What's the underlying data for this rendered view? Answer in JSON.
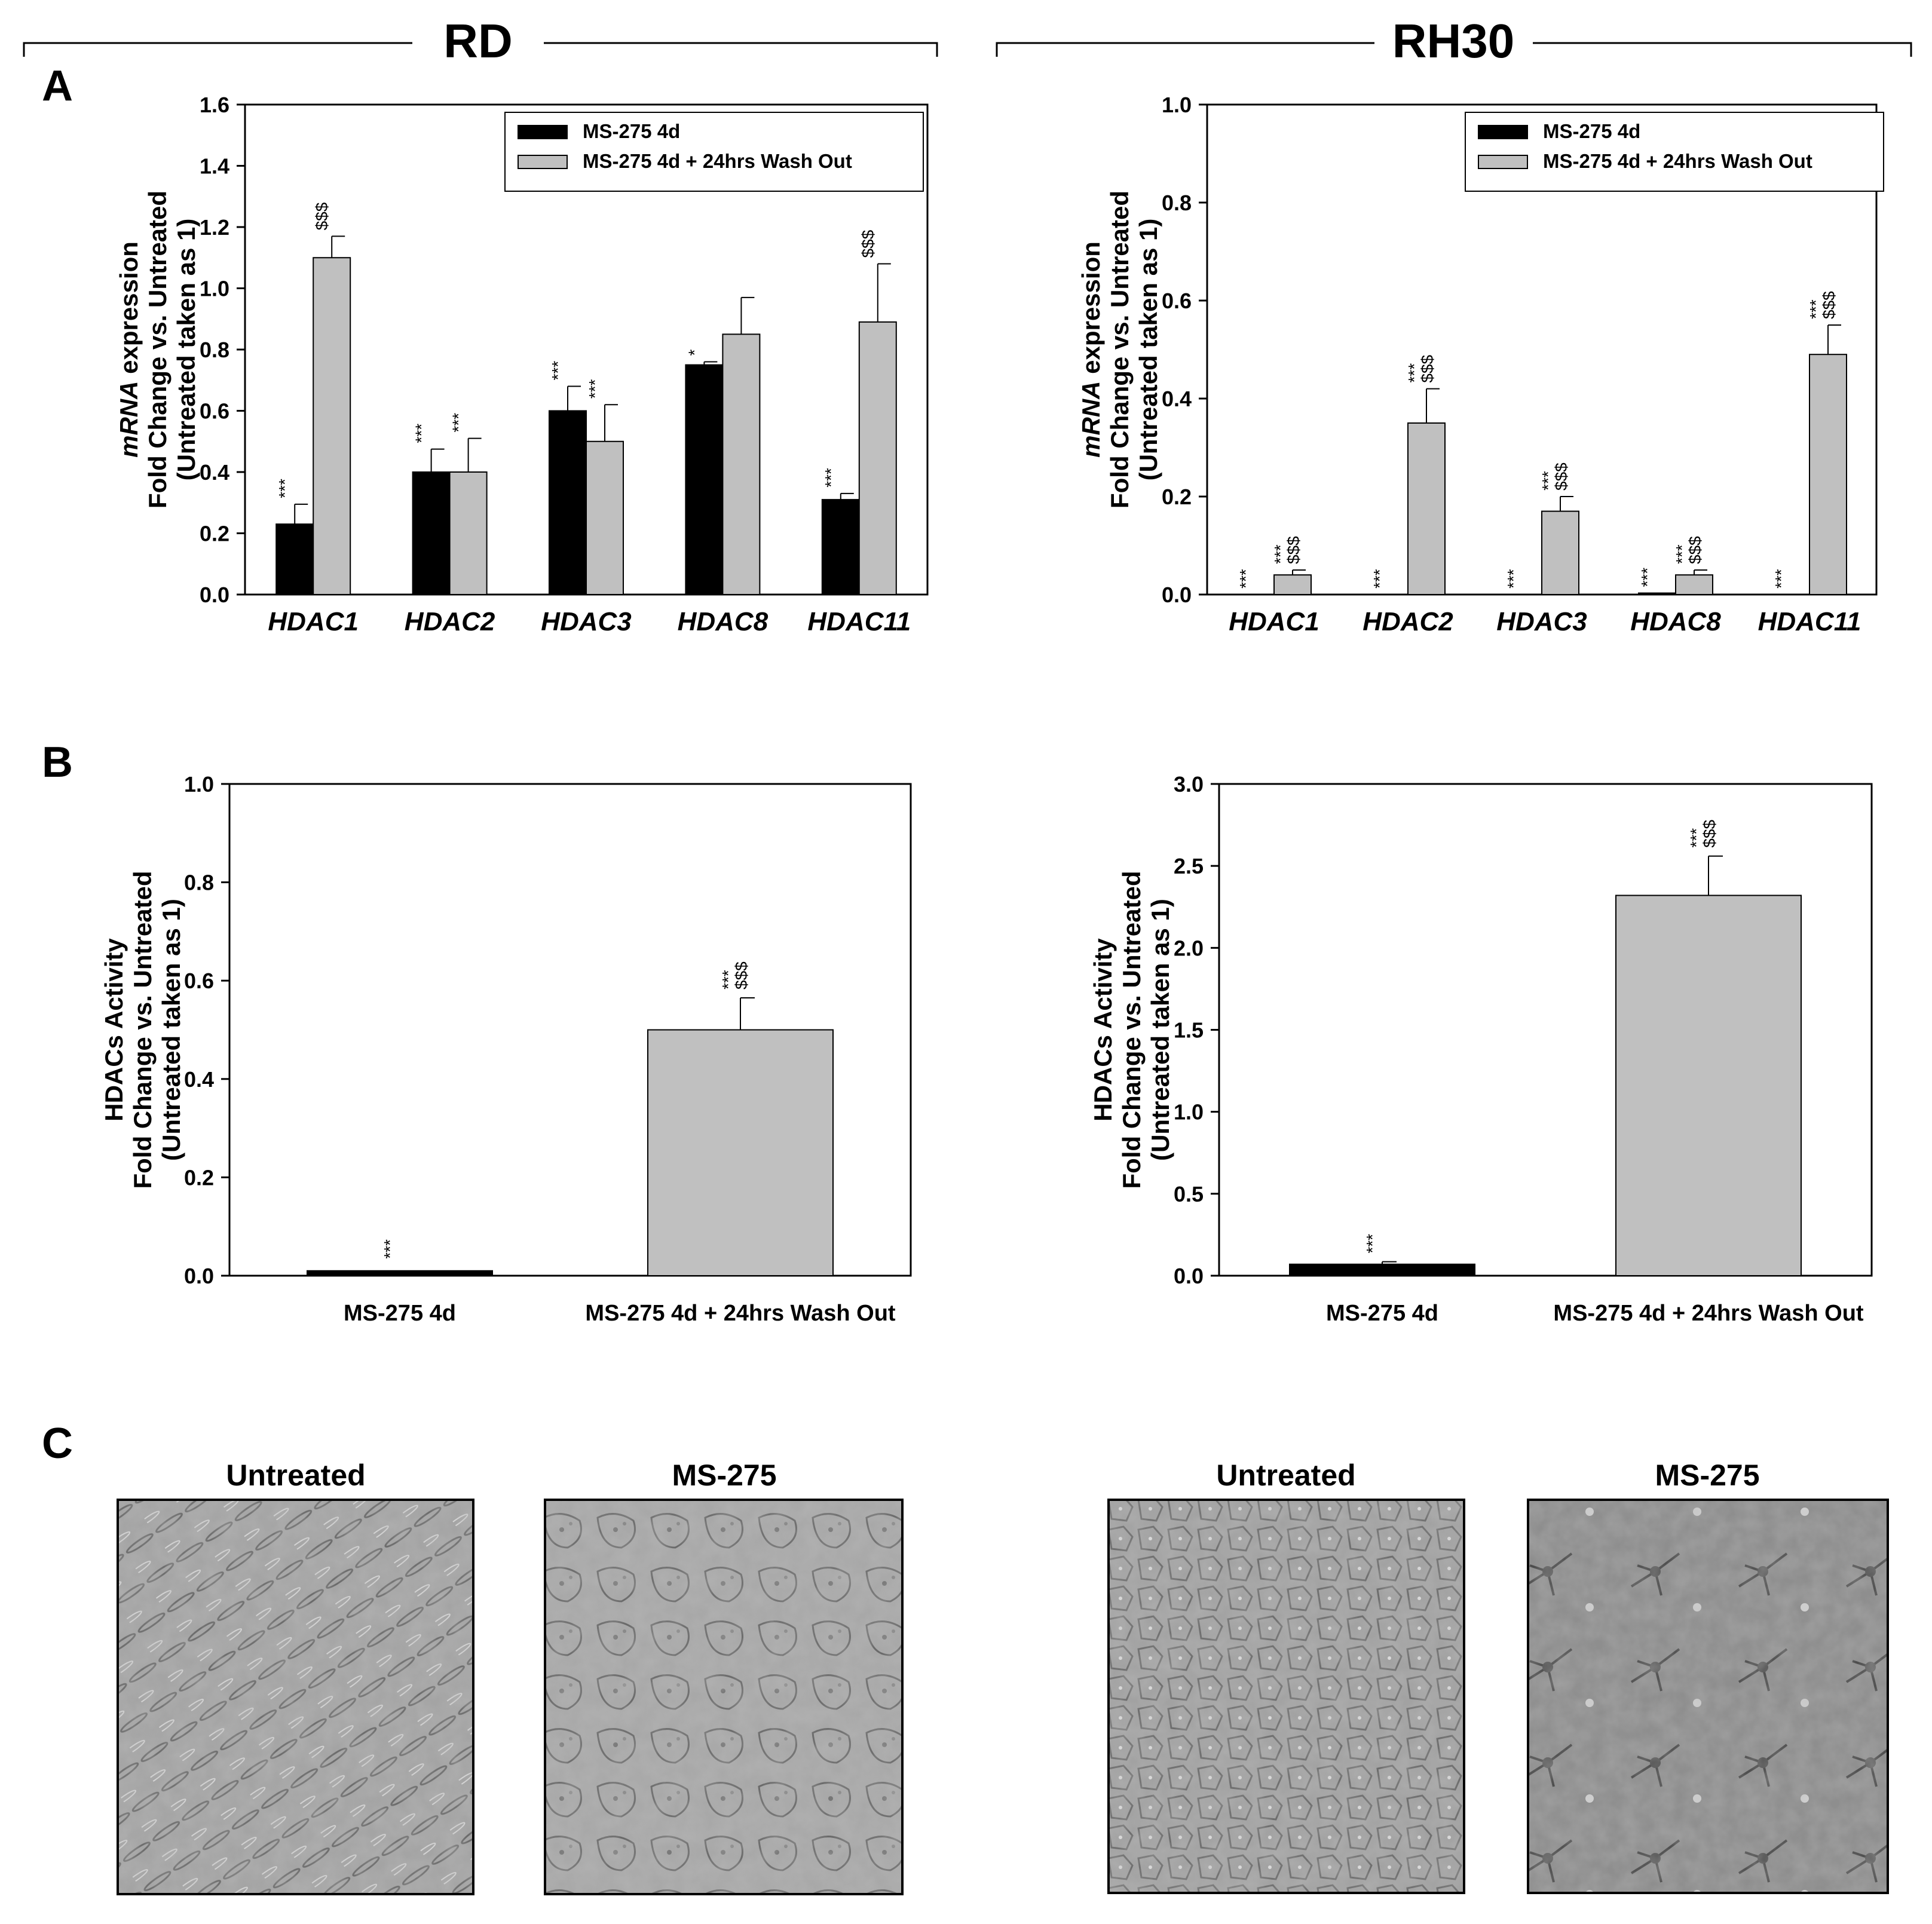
{
  "figure": {
    "headers": {
      "rd": "RD",
      "rh30": "RH30"
    },
    "panel_letters": {
      "a": "A",
      "b": "B",
      "c": "C"
    },
    "images": [
      {
        "label": "Untreated",
        "cell_line": "RD",
        "appearance": "dense elongated spindle-shaped cells"
      },
      {
        "label": "MS-275",
        "cell_line": "RD",
        "appearance": "flattened cells with granular cytoplasm"
      },
      {
        "label": "Untreated",
        "cell_line": "RH30",
        "appearance": "dense cobblestone-like cell monolayer"
      },
      {
        "label": "MS-275",
        "cell_line": "RH30",
        "appearance": "sparse scattered cells with long extensions"
      }
    ],
    "colors": {
      "bar_black": "#000000",
      "bar_grey": "#c0c0c0",
      "axis": "#000000",
      "background": "#ffffff",
      "micro_bg": "#9a9a9a"
    }
  },
  "chart_data": [
    {
      "id": "A-RD",
      "type": "bar",
      "panel": "A",
      "cell_line": "RD",
      "categories": [
        "HDAC1",
        "HDAC2",
        "HDAC3",
        "HDAC8",
        "HDAC11"
      ],
      "categories_italic": true,
      "ylabel": {
        "italic_part": "mRNA",
        "line1_rest": " expression",
        "line2": "Fold Change vs. Untreated",
        "line3": "(Untreated taken as 1)"
      },
      "ylim": [
        0,
        1.6
      ],
      "ticks": [
        0.0,
        0.2,
        0.4,
        0.6,
        0.8,
        1.0,
        1.2,
        1.4,
        1.6
      ],
      "tick_labels": [
        "0.0",
        "0.2",
        "0.4",
        "0.6",
        "0.8",
        "1.0",
        "1.2",
        "1.4",
        "1.6"
      ],
      "legend": {
        "position": "top-right",
        "entries": [
          "MS-275 4d",
          "MS-275 4d + 24hrs Wash Out"
        ]
      },
      "series": [
        {
          "name": "MS-275 4d",
          "color": "#000000",
          "values": [
            0.23,
            0.4,
            0.6,
            0.75,
            0.31
          ],
          "errors": [
            0.065,
            0.075,
            0.08,
            0.01,
            0.02
          ],
          "sig1": [
            "***",
            "***",
            "***",
            "*",
            "***"
          ],
          "sig2": [
            "",
            "",
            "",
            "",
            ""
          ]
        },
        {
          "name": "MS-275 4d + 24hrs Wash Out",
          "color": "#c0c0c0",
          "values": [
            1.1,
            0.4,
            0.5,
            0.85,
            0.89
          ],
          "errors": [
            0.07,
            0.11,
            0.12,
            0.12,
            0.19
          ],
          "sig1": [
            "",
            "***",
            "***",
            "",
            ""
          ],
          "sig2": [
            "$$$",
            "",
            "",
            "",
            "$$$"
          ]
        }
      ]
    },
    {
      "id": "A-RH30",
      "type": "bar",
      "panel": "A",
      "cell_line": "RH30",
      "categories": [
        "HDAC1",
        "HDAC2",
        "HDAC3",
        "HDAC8",
        "HDAC11"
      ],
      "categories_italic": true,
      "ylabel": {
        "italic_part": "mRNA",
        "line1_rest": " expression",
        "line2": "Fold Change vs. Untreated",
        "line3": "(Untreated taken as 1)"
      },
      "ylim": [
        0,
        1.0
      ],
      "ticks": [
        0.0,
        0.2,
        0.4,
        0.6,
        0.8,
        1.0
      ],
      "tick_labels": [
        "0.0",
        "0.2",
        "0.4",
        "0.6",
        "0.8",
        "1.0"
      ],
      "legend": {
        "position": "top-right",
        "entries": [
          "MS-275 4d",
          "MS-275 4d + 24hrs Wash Out"
        ]
      },
      "series": [
        {
          "name": "MS-275 4d",
          "color": "#000000",
          "values": [
            0.0,
            0.0,
            0.0,
            0.003,
            0.0
          ],
          "errors": [
            0,
            0,
            0,
            0,
            0
          ],
          "sig1": [
            "***",
            "***",
            "***",
            "***",
            "***"
          ],
          "sig2": [
            "",
            "",
            "",
            "",
            ""
          ]
        },
        {
          "name": "MS-275 4d + 24hrs Wash Out",
          "color": "#c0c0c0",
          "values": [
            0.04,
            0.35,
            0.17,
            0.04,
            0.49
          ],
          "errors": [
            0.01,
            0.07,
            0.03,
            0.01,
            0.06
          ],
          "sig1": [
            "***",
            "***",
            "***",
            "***",
            "***"
          ],
          "sig2": [
            "$$$",
            "$$$",
            "$$$",
            "$$$",
            "$$$"
          ]
        }
      ]
    },
    {
      "id": "B-RD",
      "type": "bar",
      "panel": "B",
      "cell_line": "RD",
      "categories": [
        "MS-275 4d",
        "MS-275 4d + 24hrs Wash Out"
      ],
      "categories_italic": false,
      "ylabel": {
        "italic_part": "",
        "line1_rest": "HDACs Activity",
        "line2": "Fold Change vs. Untreated",
        "line3": "(Untreated taken as 1)"
      },
      "ylim": [
        0,
        1.0
      ],
      "ticks": [
        0.0,
        0.2,
        0.4,
        0.6,
        0.8,
        1.0
      ],
      "tick_labels": [
        "0.0",
        "0.2",
        "0.4",
        "0.6",
        "0.8",
        "1.0"
      ],
      "values": [
        0.01,
        0.5
      ],
      "errors": [
        0.0,
        0.065
      ],
      "colors": [
        "#000000",
        "#c0c0c0"
      ],
      "sig1": [
        "***",
        "***"
      ],
      "sig2": [
        "",
        "$$$"
      ]
    },
    {
      "id": "B-RH30",
      "type": "bar",
      "panel": "B",
      "cell_line": "RH30",
      "categories": [
        "MS-275 4d",
        "MS-275 4d + 24hrs Wash Out"
      ],
      "categories_italic": false,
      "ylabel": {
        "italic_part": "",
        "line1_rest": "HDACs Activity",
        "line2": "Fold Change vs. Untreated",
        "line3": "(Untreated taken as 1)"
      },
      "ylim": [
        0,
        3.0
      ],
      "ticks": [
        0.0,
        0.5,
        1.0,
        1.5,
        2.0,
        2.5,
        3.0
      ],
      "tick_labels": [
        "0.0",
        "0.5",
        "1.0",
        "1.5",
        "2.0",
        "2.5",
        "3.0"
      ],
      "values": [
        0.07,
        2.32
      ],
      "errors": [
        0.015,
        0.24
      ],
      "colors": [
        "#000000",
        "#c0c0c0"
      ],
      "sig1": [
        "***",
        "***"
      ],
      "sig2": [
        "",
        "$$$"
      ]
    }
  ]
}
